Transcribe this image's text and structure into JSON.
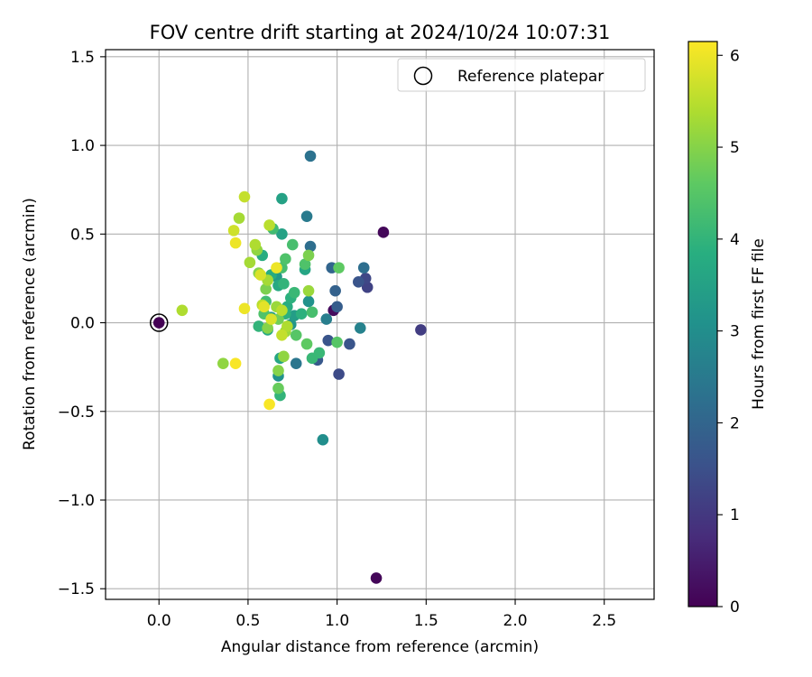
{
  "chart_data": {
    "type": "scatter",
    "title": "FOV centre drift starting at 2024/10/24 10:07:31",
    "xlabel": "Angular distance from reference (arcmin)",
    "ylabel": "Rotation from reference (arcmin)",
    "xlim": [
      -0.3,
      2.78
    ],
    "ylim": [
      -1.56,
      1.54
    ],
    "xticks": [
      0.0,
      0.5,
      1.0,
      1.5,
      2.0,
      2.5
    ],
    "xtick_labels": [
      "0.0",
      "0.5",
      "1.0",
      "1.5",
      "2.0",
      "2.5"
    ],
    "yticks": [
      -1.5,
      -1.0,
      -0.5,
      0.0,
      0.5,
      1.0,
      1.5
    ],
    "ytick_labels": [
      "−1.5",
      "−1.0",
      "−0.5",
      "0.0",
      "0.5",
      "1.0",
      "1.5"
    ],
    "grid": true,
    "legend": {
      "placement": "top-right",
      "entries": [
        "Reference platepar"
      ]
    },
    "colorbar": {
      "label": "Hours from first FF file",
      "colormap": "viridis",
      "range": [
        0,
        6.15
      ],
      "ticks": [
        0,
        1,
        2,
        3,
        4,
        5,
        6
      ],
      "tick_labels": [
        "0",
        "1",
        "2",
        "3",
        "4",
        "5",
        "6"
      ]
    },
    "reference_point": {
      "x": 0.0,
      "y": 0.0,
      "c": 0.0
    },
    "points": [
      {
        "x": 1.26,
        "y": 0.51,
        "c": 0.1
      },
      {
        "x": 1.22,
        "y": -1.44,
        "c": 0.1
      },
      {
        "x": 0.98,
        "y": 0.07,
        "c": 0.2
      },
      {
        "x": 1.47,
        "y": -0.04,
        "c": 1.1
      },
      {
        "x": 1.17,
        "y": 0.2,
        "c": 1.2
      },
      {
        "x": 1.16,
        "y": 0.25,
        "c": 1.3
      },
      {
        "x": 1.01,
        "y": -0.29,
        "c": 1.4
      },
      {
        "x": 1.12,
        "y": 0.23,
        "c": 1.6
      },
      {
        "x": 1.07,
        "y": -0.12,
        "c": 1.6
      },
      {
        "x": 0.95,
        "y": -0.1,
        "c": 1.6
      },
      {
        "x": 0.89,
        "y": -0.21,
        "c": 1.7
      },
      {
        "x": 1.0,
        "y": 0.09,
        "c": 1.8
      },
      {
        "x": 0.99,
        "y": 0.18,
        "c": 1.9
      },
      {
        "x": 0.97,
        "y": 0.31,
        "c": 2.0
      },
      {
        "x": 1.15,
        "y": 0.31,
        "c": 2.2
      },
      {
        "x": 0.85,
        "y": 0.43,
        "c": 2.2
      },
      {
        "x": 0.85,
        "y": 0.94,
        "c": 2.3
      },
      {
        "x": 0.77,
        "y": -0.23,
        "c": 2.4
      },
      {
        "x": 0.83,
        "y": 0.6,
        "c": 2.5
      },
      {
        "x": 0.94,
        "y": 0.02,
        "c": 2.6
      },
      {
        "x": 1.13,
        "y": -0.03,
        "c": 2.7
      },
      {
        "x": 0.92,
        "y": -0.66,
        "c": 3.0
      },
      {
        "x": 0.67,
        "y": -0.3,
        "c": 3.1
      },
      {
        "x": 0.84,
        "y": 0.12,
        "c": 3.1
      },
      {
        "x": 0.74,
        "y": -0.01,
        "c": 3.2
      },
      {
        "x": 0.66,
        "y": 0.26,
        "c": 3.3
      },
      {
        "x": 0.63,
        "y": 0.03,
        "c": 3.4
      },
      {
        "x": 0.76,
        "y": 0.04,
        "c": 3.4
      },
      {
        "x": 0.69,
        "y": 0.5,
        "c": 3.5
      },
      {
        "x": 0.69,
        "y": 0.7,
        "c": 3.5
      },
      {
        "x": 0.82,
        "y": 0.3,
        "c": 3.6
      },
      {
        "x": 0.68,
        "y": -0.2,
        "c": 3.6
      },
      {
        "x": 0.61,
        "y": -0.04,
        "c": 3.7
      },
      {
        "x": 0.67,
        "y": 0.21,
        "c": 3.7
      },
      {
        "x": 0.72,
        "y": 0.09,
        "c": 3.8
      },
      {
        "x": 0.58,
        "y": 0.38,
        "c": 3.8
      },
      {
        "x": 0.63,
        "y": 0.27,
        "c": 3.8
      },
      {
        "x": 0.71,
        "y": 0.05,
        "c": 3.9
      },
      {
        "x": 0.8,
        "y": 0.05,
        "c": 3.9
      },
      {
        "x": 0.74,
        "y": 0.14,
        "c": 3.9
      },
      {
        "x": 0.7,
        "y": 0.22,
        "c": 4.0
      },
      {
        "x": 0.56,
        "y": -0.02,
        "c": 4.0
      },
      {
        "x": 0.68,
        "y": -0.41,
        "c": 4.0
      },
      {
        "x": 0.86,
        "y": -0.2,
        "c": 4.1
      },
      {
        "x": 0.9,
        "y": -0.17,
        "c": 4.1
      },
      {
        "x": 0.76,
        "y": 0.17,
        "c": 4.1
      },
      {
        "x": 0.6,
        "y": 0.12,
        "c": 4.2
      },
      {
        "x": 0.64,
        "y": 0.53,
        "c": 4.2
      },
      {
        "x": 0.75,
        "y": 0.44,
        "c": 4.3
      },
      {
        "x": 0.69,
        "y": 0.31,
        "c": 4.3
      },
      {
        "x": 0.86,
        "y": 0.06,
        "c": 4.3
      },
      {
        "x": 0.82,
        "y": 0.33,
        "c": 4.4
      },
      {
        "x": 0.71,
        "y": 0.36,
        "c": 4.4
      },
      {
        "x": 0.59,
        "y": 0.05,
        "c": 4.4
      },
      {
        "x": 1.0,
        "y": -0.11,
        "c": 4.5
      },
      {
        "x": 0.77,
        "y": -0.07,
        "c": 4.5
      },
      {
        "x": 1.01,
        "y": 0.31,
        "c": 4.6
      },
      {
        "x": 0.83,
        "y": -0.12,
        "c": 4.6
      },
      {
        "x": 0.67,
        "y": -0.37,
        "c": 4.7
      },
      {
        "x": 0.67,
        "y": 0.02,
        "c": 4.8
      },
      {
        "x": 0.84,
        "y": 0.38,
        "c": 4.9
      },
      {
        "x": 0.6,
        "y": 0.19,
        "c": 4.9
      },
      {
        "x": 0.61,
        "y": -0.03,
        "c": 5.0
      },
      {
        "x": 0.56,
        "y": 0.28,
        "c": 5.0
      },
      {
        "x": 0.67,
        "y": -0.27,
        "c": 5.0
      },
      {
        "x": 0.36,
        "y": -0.23,
        "c": 5.1
      },
      {
        "x": 0.7,
        "y": -0.19,
        "c": 5.1
      },
      {
        "x": 0.55,
        "y": 0.41,
        "c": 5.1
      },
      {
        "x": 0.66,
        "y": 0.09,
        "c": 5.2
      },
      {
        "x": 0.71,
        "y": -0.05,
        "c": 5.2
      },
      {
        "x": 0.84,
        "y": 0.18,
        "c": 5.2
      },
      {
        "x": 0.45,
        "y": 0.59,
        "c": 5.3
      },
      {
        "x": 0.61,
        "y": 0.24,
        "c": 5.3
      },
      {
        "x": 0.51,
        "y": 0.34,
        "c": 5.3
      },
      {
        "x": 0.72,
        "y": -0.02,
        "c": 5.4
      },
      {
        "x": 0.13,
        "y": 0.07,
        "c": 5.4
      },
      {
        "x": 0.54,
        "y": 0.44,
        "c": 5.4
      },
      {
        "x": 0.58,
        "y": 0.1,
        "c": 5.5
      },
      {
        "x": 0.69,
        "y": 0.07,
        "c": 5.5
      },
      {
        "x": 0.62,
        "y": 0.55,
        "c": 5.5
      },
      {
        "x": 0.69,
        "y": -0.07,
        "c": 5.6
      },
      {
        "x": 0.48,
        "y": 0.71,
        "c": 5.6
      },
      {
        "x": 0.42,
        "y": 0.52,
        "c": 5.7
      },
      {
        "x": 0.63,
        "y": 0.02,
        "c": 5.8
      },
      {
        "x": 0.57,
        "y": 0.27,
        "c": 5.8
      },
      {
        "x": 0.59,
        "y": 0.09,
        "c": 5.9
      },
      {
        "x": 0.66,
        "y": 0.31,
        "c": 6.0
      },
      {
        "x": 0.43,
        "y": 0.45,
        "c": 6.0
      },
      {
        "x": 0.48,
        "y": 0.08,
        "c": 6.0
      },
      {
        "x": 0.43,
        "y": -0.23,
        "c": 6.1
      },
      {
        "x": 0.62,
        "y": -0.46,
        "c": 6.1
      }
    ]
  }
}
